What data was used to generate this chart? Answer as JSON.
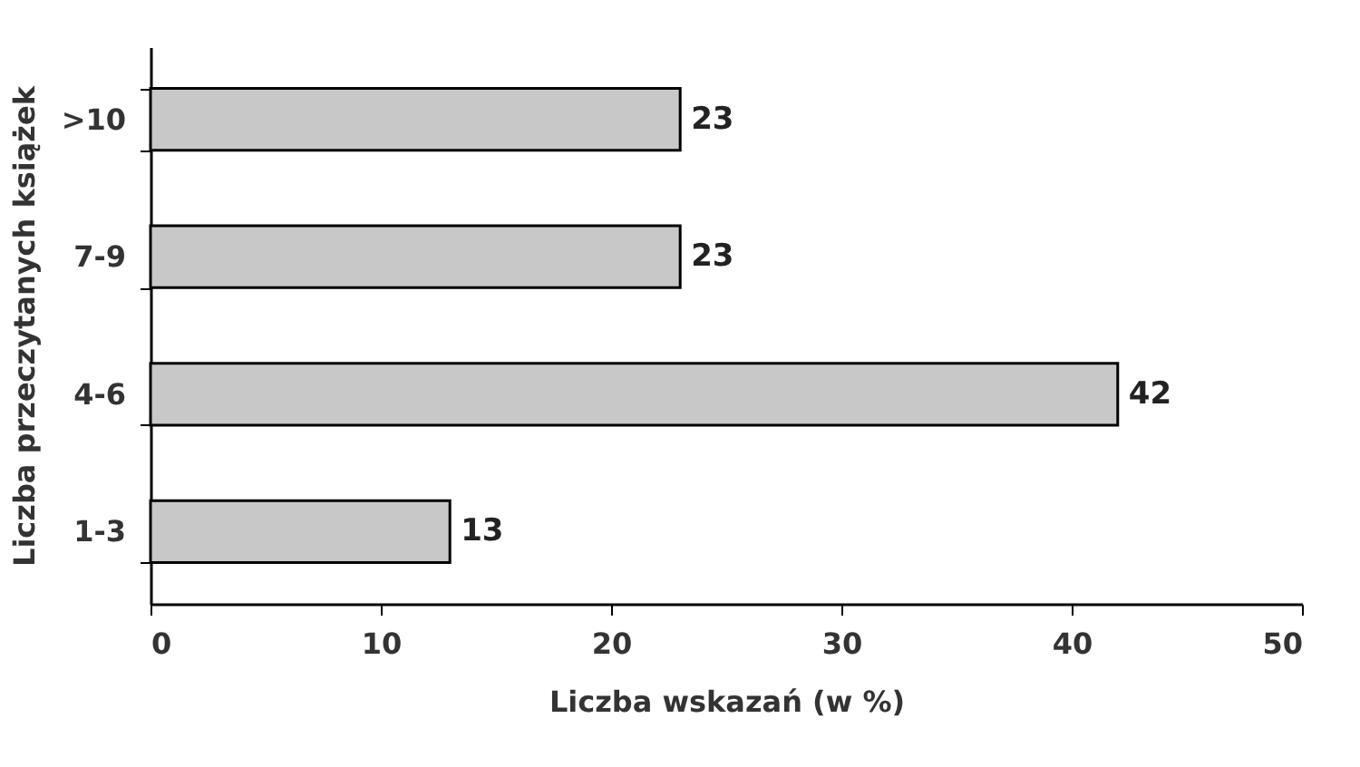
{
  "chart_data": {
    "type": "bar",
    "orientation": "horizontal",
    "xlabel": "Liczba wskazań (w %)",
    "ylabel": "Liczba przeczytanych książek",
    "categories": [
      ">10",
      "7-9",
      "4-6",
      "1-3"
    ],
    "values": [
      23,
      23,
      42,
      13
    ],
    "color": "#c8c8c8",
    "xlim": [
      0,
      50
    ],
    "xticks": [
      0,
      10,
      20,
      30,
      40,
      50
    ],
    "data_labels": true,
    "grid": false
  }
}
